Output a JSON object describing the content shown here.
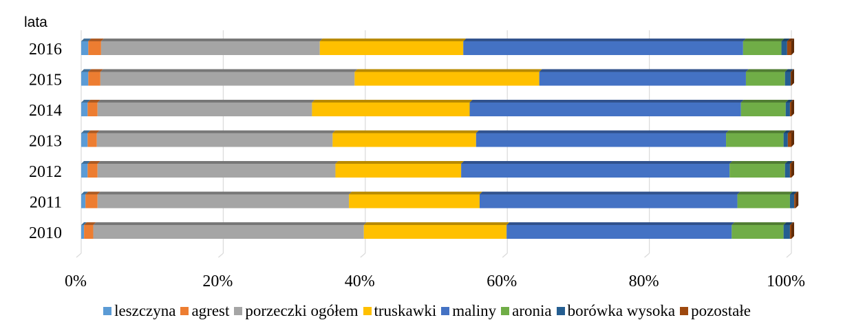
{
  "chart_data": {
    "type": "bar",
    "orientation": "horizontal",
    "stacked": "percent",
    "ylabel": "lata",
    "xlabel": "",
    "xlim": [
      0,
      100
    ],
    "xticks": [
      "0%",
      "20%",
      "40%",
      "60%",
      "80%",
      "100%"
    ],
    "grid": "vertical",
    "legend_position": "bottom",
    "categories": [
      "2016",
      "2015",
      "2014",
      "2013",
      "2012",
      "2011",
      "2010"
    ],
    "series": [
      {
        "name": "leszczyna",
        "color": "#5b9bd5",
        "values": [
          1.0,
          1.0,
          0.9,
          0.9,
          0.9,
          0.6,
          0.4
        ]
      },
      {
        "name": "agrest",
        "color": "#ed7d31",
        "values": [
          1.8,
          1.7,
          1.4,
          1.3,
          1.4,
          1.7,
          1.3
        ]
      },
      {
        "name": "porzeczki ogółem",
        "color": "#a5a5a5",
        "values": [
          30.8,
          35.8,
          30.2,
          33.2,
          33.5,
          35.4,
          38.1
        ]
      },
      {
        "name": "truskawki",
        "color": "#ffc000",
        "values": [
          20.2,
          26.0,
          22.2,
          20.2,
          17.7,
          18.4,
          20.1
        ]
      },
      {
        "name": "maliny",
        "color": "#4472c4",
        "values": [
          39.4,
          29.1,
          38.2,
          35.2,
          37.8,
          36.3,
          31.7
        ]
      },
      {
        "name": "aronia",
        "color": "#70ad47",
        "values": [
          5.4,
          5.5,
          6.3,
          8.1,
          7.8,
          7.4,
          7.3
        ]
      },
      {
        "name": "borówka wysoka",
        "color": "#255e91",
        "values": [
          0.8,
          0.8,
          0.6,
          0.6,
          0.7,
          0.6,
          0.9
        ]
      },
      {
        "name": "pozostałe",
        "color": "#9e480e",
        "values": [
          0.6,
          0.1,
          0.2,
          0.5,
          0.2,
          0.2,
          0.2
        ]
      }
    ]
  }
}
